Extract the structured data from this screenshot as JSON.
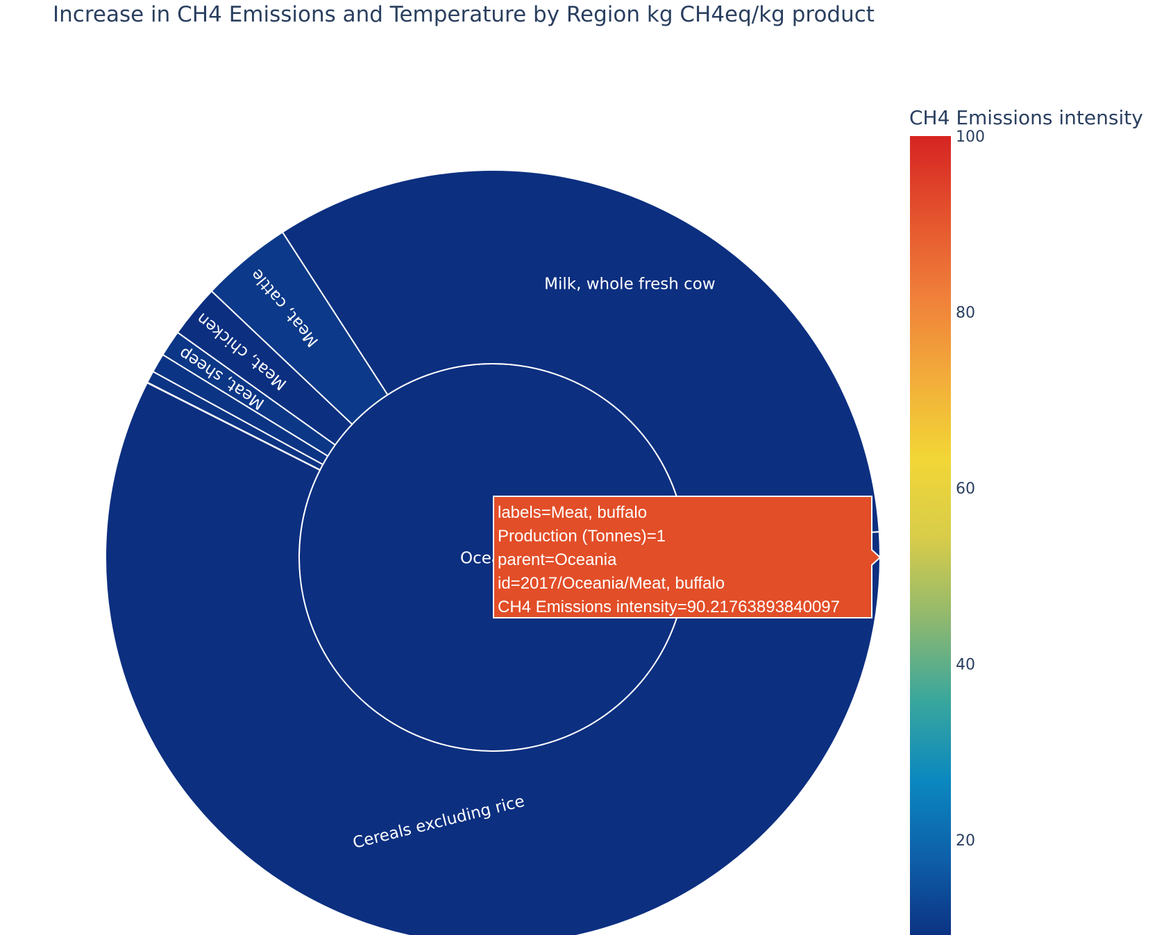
{
  "chart_data": {
    "type": "sunburst",
    "title": "Increase in CH4 Emissions and Temperature by Region kg CH4eq/kg product",
    "root": {
      "label": "Oceania",
      "color_value": 8.5
    },
    "segments": [
      {
        "label": "Cereals excluding rice",
        "value": 58.5,
        "color_value": 8.5
      },
      {
        "label": "Meat, buffalo",
        "value": 0.02,
        "color_value": 90.21763893840097
      },
      {
        "label": "",
        "value": 0.5,
        "color_value": 9.5
      },
      {
        "label": "",
        "value": 0.8,
        "color_value": 9.5
      },
      {
        "label": "Meat, sheep",
        "value": 1.1,
        "color_value": 10
      },
      {
        "label": "Meat, chicken",
        "value": 2.2,
        "color_value": 8.5
      },
      {
        "label": "Meat, cattle",
        "value": 3.8,
        "color_value": 10.5
      },
      {
        "label": "Milk, whole fresh cow",
        "value": 33.08,
        "color_value": 8.5
      }
    ],
    "colorbar": {
      "title": "CH4 Emissions intensity",
      "range": [
        8.5,
        100
      ],
      "ticks": [
        20,
        40,
        60,
        80,
        100
      ]
    },
    "colorscale": [
      "#0c2f80",
      "#0e5ea8",
      "#0b88c0",
      "#3aa79c",
      "#8fb86f",
      "#d7cc4a",
      "#f2d636",
      "#f2ac3a",
      "#f0803a",
      "#e4532e",
      "#d62422"
    ],
    "hover": {
      "lines": [
        "labels=Meat, buffalo",
        "Production (Tonnes)=1",
        "parent=Oceania",
        "id=2017/Oceania/Meat, buffalo",
        "CH4 Emissions intensity=90.21763893840097"
      ],
      "background": "#e24e28"
    }
  }
}
